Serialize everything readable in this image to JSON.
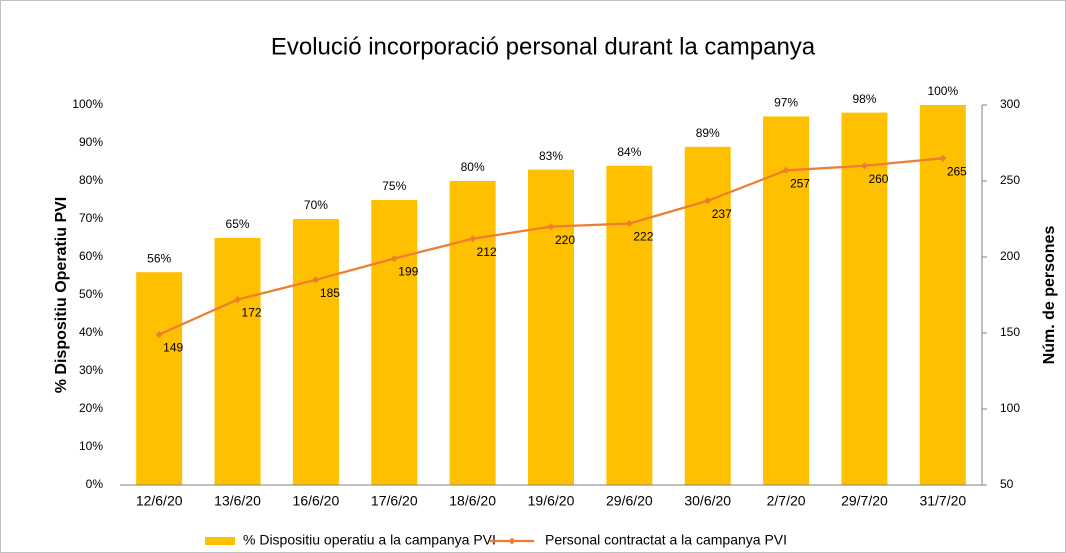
{
  "chart_data": {
    "type": "bar",
    "title": "Evolució incorporació personal durant la campanya",
    "ylabel": "% Dispositiu  Operatiu PVI",
    "y2label": "Núm. de persones",
    "categories": [
      "12/6/20",
      "13/6/20",
      "16/6/20",
      "17/6/20",
      "18/6/20",
      "19/6/20",
      "29/6/20",
      "30/6/20",
      "2/7/20",
      "29/7/20",
      "31/7/20"
    ],
    "series": [
      {
        "name": "% Dispositiu operatiu a la campanya PVI",
        "type": "bar",
        "color": "#FFC000",
        "values": [
          56,
          65,
          70,
          75,
          80,
          83,
          84,
          89,
          97,
          98,
          100
        ],
        "value_labels": [
          "56%",
          "65%",
          "70%",
          "75%",
          "80%",
          "83%",
          "84%",
          "89%",
          "97%",
          "98%",
          "100%"
        ]
      },
      {
        "name": "Personal contractat a la campanya PVI",
        "type": "line",
        "axis": "y2",
        "color": "#ED7D31",
        "values": [
          149,
          172,
          185,
          199,
          212,
          220,
          222,
          237,
          257,
          260,
          265
        ]
      }
    ],
    "ylim": [
      0,
      100
    ],
    "yticks": [
      {
        "value": 0,
        "label": "0%"
      },
      {
        "value": 10,
        "label": "10%"
      },
      {
        "value": 20,
        "label": "20%"
      },
      {
        "value": 30,
        "label": "30%"
      },
      {
        "value": 40,
        "label": "40%"
      },
      {
        "value": 50,
        "label": "50%"
      },
      {
        "value": 60,
        "label": "60%"
      },
      {
        "value": 70,
        "label": "70%"
      },
      {
        "value": 80,
        "label": "80%"
      },
      {
        "value": 90,
        "label": "90%"
      },
      {
        "value": 100,
        "label": "100%"
      }
    ],
    "y2lim": [
      50,
      300
    ],
    "y2ticks": [
      50,
      100,
      150,
      200,
      250,
      300
    ],
    "legend": "bottom"
  }
}
